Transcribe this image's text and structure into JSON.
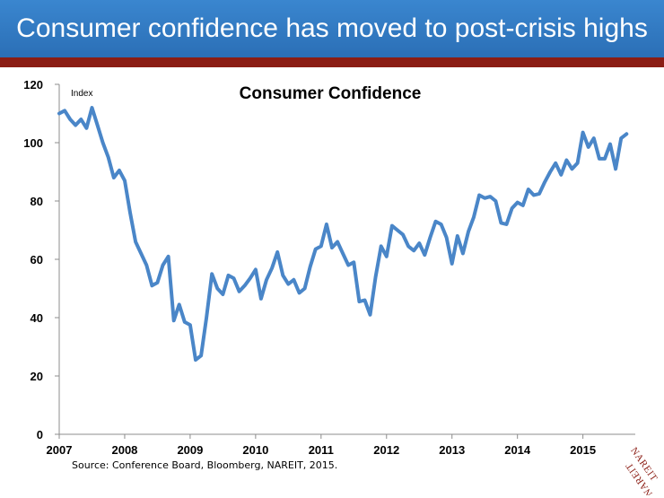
{
  "header": {
    "title": "Consumer confidence has moved to post-crisis highs"
  },
  "source_note": "Source: Conference Board, Bloomberg, NAREIT, 2015.",
  "logo": {
    "text_top": "NAREIT",
    "text_bottom": "NAREIT"
  },
  "colors": {
    "header_blue": "#2f78c0",
    "accent_red": "#8b1d14",
    "line": "#4a86c8"
  },
  "chart_data": {
    "type": "line",
    "title": "Consumer Confidence",
    "unit_label": "Index",
    "ylim": [
      0,
      120
    ],
    "yticks": [
      0,
      20,
      40,
      60,
      80,
      100,
      120
    ],
    "xlim": [
      2007,
      2015.8
    ],
    "xticks": [
      "2007",
      "2008",
      "2009",
      "2010",
      "2011",
      "2012",
      "2013",
      "2014",
      "2015"
    ],
    "grid": false,
    "series": [
      {
        "values": [
          110,
          111,
          108,
          106,
          108,
          105,
          112,
          106,
          100,
          95,
          88,
          90.5,
          87,
          76,
          66,
          62,
          58,
          51,
          52,
          58,
          61,
          39,
          44.5,
          38.5,
          37.5,
          25.5,
          27,
          40,
          55,
          50,
          48,
          54.5,
          53.5,
          49,
          51,
          53.5,
          56.5,
          46.5,
          53,
          57,
          62.5,
          54.5,
          51.5,
          53,
          48.5,
          50,
          57.5,
          63.5,
          64.5,
          72,
          64,
          66,
          62,
          58,
          59,
          45.5,
          46,
          41,
          54,
          64.5,
          61,
          71.5,
          70,
          68.5,
          64.5,
          63,
          65.5,
          61.5,
          67.5,
          73,
          72,
          67.5,
          58.5,
          68,
          62,
          69.5,
          74.5,
          82,
          81,
          81.5,
          80,
          72.5,
          72,
          77.5,
          79.5,
          78.5,
          84,
          82,
          82.5,
          86.5,
          90,
          93,
          89,
          94,
          91,
          93,
          103.5,
          98.5,
          101.5,
          94.5,
          94.5,
          99.5,
          91,
          101.5,
          103
        ]
      }
    ]
  }
}
